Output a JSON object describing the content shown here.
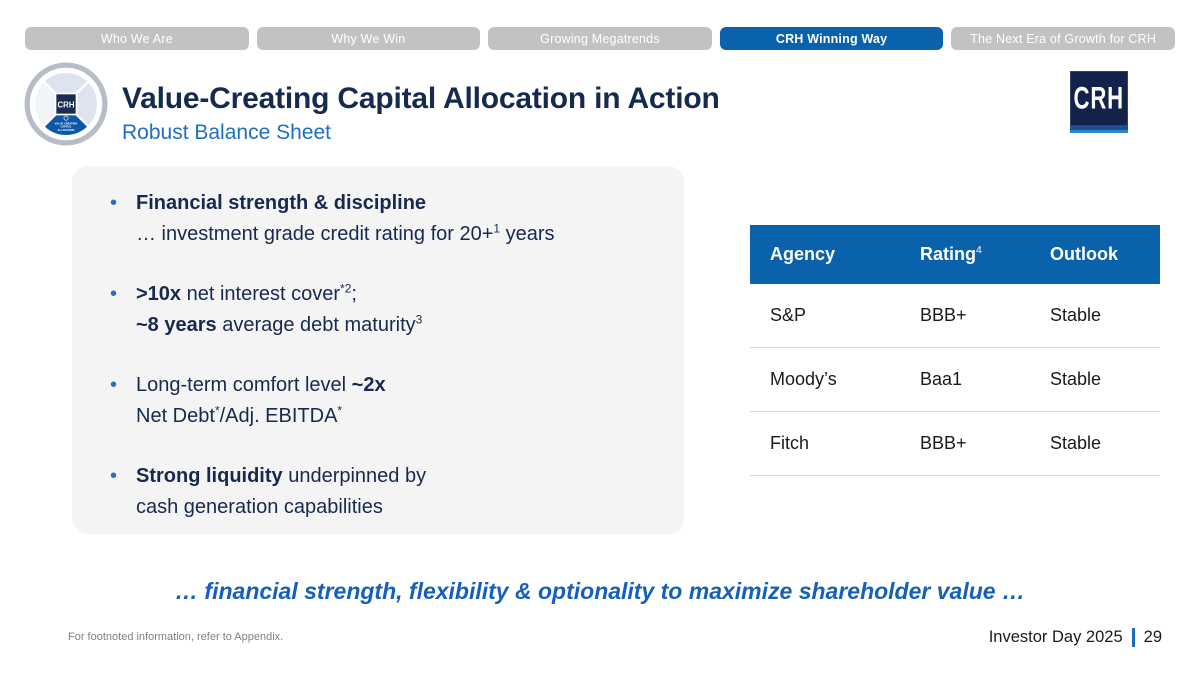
{
  "colors": {
    "accent_blue": "#0a61ac",
    "navy_text": "#16294e",
    "subtitle_blue": "#1e6ec6",
    "statement_blue": "#1560b8",
    "inactive_tab_gray": "#c2c2c2",
    "card_background": "#f4f4f5",
    "bullet_dot_blue": "#2a6fb8"
  },
  "tabs": {
    "items": [
      {
        "label": "Who We Are",
        "active": false
      },
      {
        "label": "Why We Win",
        "active": false
      },
      {
        "label": "Growing Megatrends",
        "active": false
      },
      {
        "label": "CRH Winning Way",
        "active": true
      },
      {
        "label": "The Next Era of Growth for CRH",
        "active": false
      }
    ]
  },
  "header": {
    "title": "Value-Creating Capital Allocation in Action",
    "subtitle": "Robust Balance Sheet",
    "logo_text": "CRH",
    "wheel": {
      "center_label": "CRH",
      "active_label_lines": [
        "VALUE CREATING",
        "CAPITAL",
        "ALLOCATION"
      ]
    }
  },
  "bullets": [
    {
      "lines": [
        [
          {
            "t": "Financial strength & discipline",
            "b": true
          }
        ],
        [
          {
            "t": "… investment grade credit rating for 20+"
          },
          {
            "t": "1",
            "sup": true
          },
          {
            "t": " years"
          }
        ]
      ]
    },
    {
      "lines": [
        [
          {
            "t": ">10x",
            "b": true
          },
          {
            "t": " net interest cover"
          },
          {
            "t": "*2",
            "sup": true
          },
          {
            "t": ";"
          }
        ],
        [
          {
            "t": "~8 years",
            "b": true
          },
          {
            "t": " average debt maturity"
          },
          {
            "t": "3",
            "sup": true
          }
        ]
      ]
    },
    {
      "lines": [
        [
          {
            "t": "Long-term comfort level "
          },
          {
            "t": "~2x",
            "b": true
          }
        ],
        [
          {
            "t": "Net Debt"
          },
          {
            "t": "*",
            "sup": true
          },
          {
            "t": "/Adj. EBITDA"
          },
          {
            "t": "*",
            "sup": true
          }
        ]
      ]
    },
    {
      "lines": [
        [
          {
            "t": "Strong liquidity",
            "b": true
          },
          {
            "t": " underpinned by"
          }
        ],
        [
          {
            "t": "cash generation capabilities"
          }
        ]
      ]
    }
  ],
  "ratings_table": {
    "headers": [
      {
        "label": "Agency",
        "sup": ""
      },
      {
        "label": "Rating",
        "sup": "4"
      },
      {
        "label": "Outlook",
        "sup": ""
      }
    ],
    "rows": [
      [
        "S&P",
        "BBB+",
        "Stable"
      ],
      [
        "Moody’s",
        "Baa1",
        "Stable"
      ],
      [
        "Fitch",
        "BBB+",
        "Stable"
      ]
    ]
  },
  "statement": "… financial strength, flexibility & optionality to maximize shareholder value …",
  "footer": {
    "footnote": "For footnoted information, refer to Appendix.",
    "event": "Investor Day 2025",
    "page": "29"
  }
}
